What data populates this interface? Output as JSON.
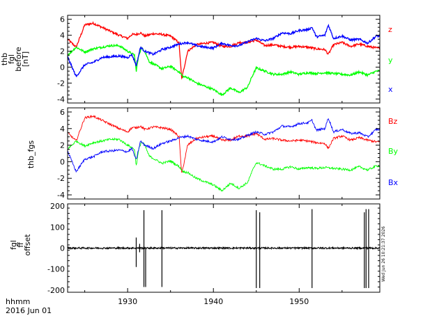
{
  "chart_data": [
    {
      "type": "line",
      "ylabel_lines": [
        "thb",
        "fgl",
        "before",
        "[nT]"
      ],
      "ylim": [
        -4.5,
        6.5
      ],
      "yticks": [
        -4,
        -2,
        0,
        2,
        4,
        6
      ],
      "xlim": [
        1923.0,
        1959.4
      ],
      "series": [
        {
          "name": "z",
          "color": "#ff0000",
          "x": [
            1923,
            1924,
            1925,
            1926,
            1927,
            1928,
            1929,
            1930,
            1930.5,
            1931,
            1931.5,
            1932,
            1933,
            1934,
            1935,
            1935.5,
            1936,
            1936.3,
            1936.5,
            1937,
            1938,
            1939,
            1940,
            1941,
            1942,
            1943,
            1944,
            1945,
            1946,
            1947,
            1948,
            1949,
            1950,
            1951,
            1952,
            1953,
            1953.4,
            1954,
            1955,
            1956,
            1957,
            1958,
            1959
          ],
          "values": [
            3.5,
            2.5,
            5.3,
            5.5,
            5.0,
            4.5,
            4.0,
            3.6,
            4.1,
            4.1,
            4.3,
            3.9,
            4.2,
            4.1,
            3.9,
            3.5,
            3.0,
            -1.5,
            -0.5,
            2.0,
            2.8,
            3.0,
            3.1,
            2.6,
            2.6,
            3.1,
            3.1,
            3.4,
            2.7,
            2.8,
            2.6,
            2.5,
            2.6,
            2.5,
            2.3,
            2.2,
            1.6,
            2.8,
            3.1,
            2.6,
            2.9,
            2.6,
            2.4
          ]
        },
        {
          "name": "y",
          "color": "#00ff00",
          "x": [
            1923,
            1924,
            1925,
            1926,
            1927,
            1928,
            1929,
            1930,
            1930.8,
            1931,
            1931.3,
            1931.6,
            1932,
            1932.5,
            1933,
            1934,
            1935,
            1936,
            1936.5,
            1937,
            1938,
            1939,
            1940,
            1941,
            1942,
            1943,
            1944,
            1944.5,
            1945,
            1946,
            1947,
            1948,
            1949,
            1950,
            1951,
            1952,
            1953,
            1954,
            1955,
            1956,
            1957,
            1958,
            1959
          ],
          "values": [
            1.5,
            2.5,
            1.9,
            2.3,
            2.5,
            2.7,
            2.7,
            2.0,
            1.5,
            -0.5,
            1.5,
            2.4,
            2.0,
            0.7,
            0.4,
            -0.2,
            0.1,
            -0.6,
            -1.2,
            -1.3,
            -2.0,
            -2.4,
            -2.8,
            -3.5,
            -2.6,
            -3.2,
            -2.5,
            -1.2,
            -0.1,
            -0.5,
            -0.9,
            -0.9,
            -0.6,
            -0.9,
            -0.7,
            -0.8,
            -0.7,
            -0.8,
            -0.9,
            -1.0,
            -0.6,
            -1.0,
            -0.5
          ]
        },
        {
          "name": "x",
          "color": "#0000ff",
          "x": [
            1923,
            1924,
            1925,
            1926,
            1927,
            1928,
            1929,
            1930,
            1930.5,
            1931,
            1931.5,
            1932,
            1933,
            1934,
            1935,
            1936,
            1937,
            1938,
            1939,
            1940,
            1941,
            1942,
            1943,
            1944,
            1945,
            1946,
            1947,
            1948,
            1949,
            1950,
            1951,
            1951.5,
            1952,
            1953,
            1953.4,
            1954,
            1955,
            1956,
            1957,
            1958,
            1959
          ],
          "values": [
            1.3,
            -1.2,
            0.3,
            0.6,
            1.2,
            1.3,
            1.4,
            1.2,
            1.6,
            0.2,
            2.5,
            2.0,
            1.6,
            2.2,
            2.5,
            2.9,
            3.1,
            2.7,
            2.5,
            2.4,
            3.0,
            2.7,
            2.7,
            3.2,
            3.6,
            3.3,
            3.6,
            4.3,
            4.2,
            4.6,
            4.7,
            5.0,
            3.8,
            4.0,
            5.3,
            3.6,
            3.9,
            3.4,
            3.5,
            3.0,
            3.9
          ]
        }
      ]
    },
    {
      "type": "line",
      "ylabel_lines": [
        "thb_fgs"
      ],
      "ylim": [
        -4.5,
        6.5
      ],
      "yticks": [
        -4,
        -2,
        0,
        2,
        4,
        6
      ],
      "xlim": [
        1923.0,
        1959.4
      ],
      "series": [
        {
          "name": "Bz",
          "color": "#ff0000",
          "x": [
            1923,
            1924,
            1925,
            1926,
            1927,
            1928,
            1929,
            1930,
            1930.5,
            1931,
            1931.5,
            1932,
            1933,
            1934,
            1935,
            1935.5,
            1936,
            1936.3,
            1936.5,
            1937,
            1938,
            1939,
            1940,
            1941,
            1942,
            1943,
            1944,
            1945,
            1946,
            1947,
            1948,
            1949,
            1950,
            1951,
            1952,
            1953,
            1953.4,
            1954,
            1955,
            1956,
            1957,
            1958,
            1959
          ],
          "values": [
            3.5,
            2.5,
            5.3,
            5.5,
            5.0,
            4.5,
            4.0,
            3.6,
            4.1,
            4.1,
            4.3,
            3.9,
            4.2,
            4.1,
            3.9,
            3.5,
            3.0,
            -1.5,
            -0.5,
            2.0,
            2.8,
            3.0,
            3.1,
            2.6,
            2.6,
            3.1,
            3.1,
            3.4,
            2.7,
            2.8,
            2.6,
            2.5,
            2.6,
            2.5,
            2.3,
            2.2,
            1.6,
            2.8,
            3.1,
            2.6,
            2.9,
            2.6,
            2.4
          ]
        },
        {
          "name": "By",
          "color": "#00ff00",
          "x": [
            1923,
            1924,
            1925,
            1926,
            1927,
            1928,
            1929,
            1930,
            1930.8,
            1931,
            1931.3,
            1931.6,
            1932,
            1932.5,
            1933,
            1934,
            1935,
            1936,
            1936.5,
            1937,
            1938,
            1939,
            1940,
            1941,
            1942,
            1943,
            1944,
            1944.5,
            1945,
            1946,
            1947,
            1948,
            1949,
            1950,
            1951,
            1952,
            1953,
            1954,
            1955,
            1956,
            1957,
            1958,
            1959
          ],
          "values": [
            1.5,
            2.5,
            1.9,
            2.3,
            2.5,
            2.7,
            2.7,
            2.0,
            1.5,
            -0.5,
            1.5,
            2.4,
            2.0,
            0.7,
            0.4,
            -0.2,
            0.1,
            -0.6,
            -1.2,
            -1.3,
            -2.0,
            -2.4,
            -2.8,
            -3.5,
            -2.6,
            -3.2,
            -2.5,
            -1.2,
            -0.1,
            -0.5,
            -0.9,
            -0.9,
            -0.6,
            -0.9,
            -0.7,
            -0.8,
            -0.7,
            -0.8,
            -0.9,
            -1.0,
            -0.6,
            -1.0,
            -0.5
          ]
        },
        {
          "name": "Bx",
          "color": "#0000ff",
          "x": [
            1923,
            1924,
            1925,
            1926,
            1927,
            1928,
            1929,
            1930,
            1930.5,
            1931,
            1931.5,
            1932,
            1933,
            1934,
            1935,
            1936,
            1937,
            1938,
            1939,
            1940,
            1941,
            1942,
            1943,
            1944,
            1945,
            1946,
            1947,
            1948,
            1949,
            1950,
            1951,
            1951.5,
            1952,
            1953,
            1953.4,
            1954,
            1955,
            1956,
            1957,
            1958,
            1959
          ],
          "values": [
            1.3,
            -1.2,
            0.3,
            0.6,
            1.2,
            1.3,
            1.4,
            1.2,
            1.6,
            0.2,
            2.5,
            2.0,
            1.6,
            2.2,
            2.5,
            2.9,
            3.1,
            2.7,
            2.5,
            2.4,
            3.0,
            2.7,
            2.7,
            3.2,
            3.6,
            3.3,
            3.6,
            4.3,
            4.2,
            4.6,
            4.7,
            5.0,
            3.8,
            4.0,
            5.3,
            3.6,
            3.9,
            3.4,
            3.5,
            3.0,
            3.9
          ]
        }
      ]
    },
    {
      "type": "line",
      "ylabel_lines": [
        "fgl",
        "ff",
        "offset"
      ],
      "ylim": [
        -210,
        210
      ],
      "yticks": [
        -200,
        -100,
        0,
        100,
        200
      ],
      "xlim": [
        1923.0,
        1959.4
      ],
      "series": [
        {
          "name": "",
          "color": "#000000",
          "spikes": [
            {
              "x": 1931.0,
              "low": -90,
              "high": 50
            },
            {
              "x": 1931.4,
              "low": -20,
              "high": 20
            },
            {
              "x": 1931.9,
              "low": -185,
              "high": 180
            },
            {
              "x": 1932.1,
              "low": -185,
              "high": 0
            },
            {
              "x": 1934.0,
              "low": -185,
              "high": 180
            },
            {
              "x": 1945.0,
              "low": -190,
              "high": 180
            },
            {
              "x": 1945.4,
              "low": -190,
              "high": 170
            },
            {
              "x": 1951.5,
              "low": -190,
              "high": 185
            },
            {
              "x": 1957.6,
              "low": -190,
              "high": 170
            },
            {
              "x": 1957.8,
              "low": -190,
              "high": 185
            },
            {
              "x": 1958.1,
              "low": -190,
              "high": 185
            }
          ],
          "baseline_noise": 4
        }
      ]
    }
  ],
  "x_axis": {
    "tick_labels": [
      "1930",
      "1940",
      "1950"
    ],
    "tick_values": [
      1930,
      1940,
      1950
    ],
    "unit_label": "hhmm",
    "date_label": "2016 Jun 01"
  },
  "timestamp": "Wed Jun 26 10:21:37 2026"
}
